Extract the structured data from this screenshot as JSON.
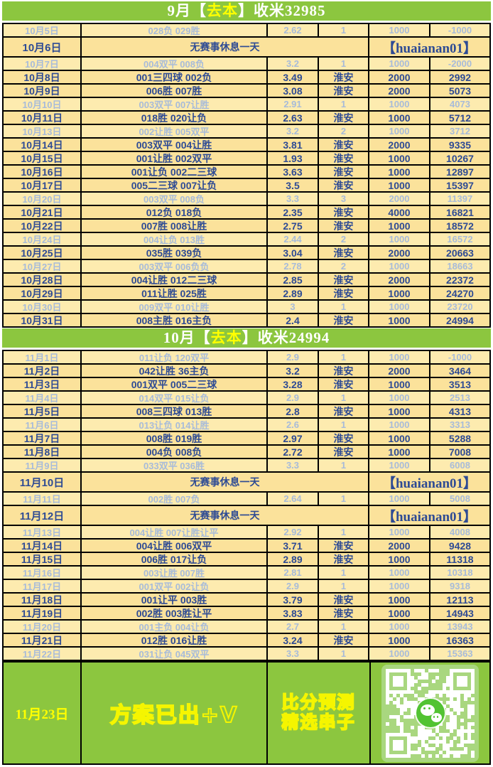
{
  "colors": {
    "header_green": "#8CC63F",
    "highlight_yellow": "#FFFF00",
    "win_text_navy": "#2E4B94",
    "loss_text_blue": "#A7BBD9",
    "win_row_bg": "#FBE29B",
    "loss_row_bg": "#FDEBAF",
    "footer_text_yellow": "#F5F500",
    "qr_bg_green": "#A9D77F",
    "wechat_green": "#52C332"
  },
  "headers": {
    "september": {
      "prefix": "9月【",
      "highlight": "去本",
      "suffix": "】收米32985"
    },
    "october": {
      "prefix": "10月【",
      "highlight": "去本",
      "suffix": "】收米24994"
    }
  },
  "october_rows": [
    {
      "type": "bet",
      "state": "loss",
      "date": "10月5日",
      "bets": "028负 029胜",
      "odds": "2.62",
      "venue": "1",
      "stake": "1000",
      "profit": "-1000"
    },
    {
      "type": "rest",
      "date": "10月6日",
      "note": "无赛事休息一天",
      "watermark": "【huaianan01】"
    },
    {
      "type": "bet",
      "state": "loss",
      "date": "10月7日",
      "bets": "004双平 008负",
      "odds": "3.2",
      "venue": "1",
      "stake": "1000",
      "profit": "-2000"
    },
    {
      "type": "bet",
      "state": "win",
      "date": "10月8日",
      "bets": "001三四球 002负",
      "odds": "3.49",
      "venue": "淮安",
      "stake": "2000",
      "profit": "2992"
    },
    {
      "type": "bet",
      "state": "win",
      "date": "10月9日",
      "bets": "006胜 007胜",
      "odds": "3.08",
      "venue": "淮安",
      "stake": "2000",
      "profit": "5073"
    },
    {
      "type": "bet",
      "state": "loss",
      "date": "10月10日",
      "bets": "003双平 007让胜",
      "odds": "2.91",
      "venue": "1",
      "stake": "1000",
      "profit": "4073"
    },
    {
      "type": "bet",
      "state": "win",
      "date": "10月11日",
      "bets": "018胜 020让负",
      "odds": "2.63",
      "venue": "淮安",
      "stake": "1000",
      "profit": "5712"
    },
    {
      "type": "bet",
      "state": "loss",
      "date": "10月13日",
      "bets": "002让胜 005双平",
      "odds": "3.2",
      "venue": "2",
      "stake": "1000",
      "profit": "3712"
    },
    {
      "type": "bet",
      "state": "win",
      "date": "10月14日",
      "bets": "003双平 004让胜",
      "odds": "3.81",
      "venue": "淮安",
      "stake": "2000",
      "profit": "9335"
    },
    {
      "type": "bet",
      "state": "win",
      "date": "10月15日",
      "bets": "001让胜 002双平",
      "odds": "1.93",
      "venue": "淮安",
      "stake": "1000",
      "profit": "10267"
    },
    {
      "type": "bet",
      "state": "win",
      "date": "10月16日",
      "bets": "001让负 002二三球",
      "odds": "3.63",
      "venue": "淮安",
      "stake": "1000",
      "profit": "12897"
    },
    {
      "type": "bet",
      "state": "win",
      "date": "10月17日",
      "bets": "005二三球 007让负",
      "odds": "3.5",
      "venue": "淮安",
      "stake": "1000",
      "profit": "15397"
    },
    {
      "type": "bet",
      "state": "loss",
      "date": "10月20日",
      "bets": "003双平 008负",
      "odds": "3.3",
      "venue": "3",
      "stake": "2000",
      "profit": "11397"
    },
    {
      "type": "bet",
      "state": "win",
      "date": "10月21日",
      "bets": "012负 018负",
      "odds": "2.35",
      "venue": "淮安",
      "stake": "4000",
      "profit": "16821"
    },
    {
      "type": "bet",
      "state": "win",
      "date": "10月22日",
      "bets": "007胜 008让胜",
      "odds": "2.75",
      "venue": "淮安",
      "stake": "1000",
      "profit": "18572"
    },
    {
      "type": "bet",
      "state": "loss",
      "date": "10月24日",
      "bets": "004让负 013胜",
      "odds": "2.44",
      "venue": "2",
      "stake": "1000",
      "profit": "16572"
    },
    {
      "type": "bet",
      "state": "win",
      "date": "10月25日",
      "bets": "035胜 039负",
      "odds": "3.04",
      "venue": "淮安",
      "stake": "2000",
      "profit": "20663"
    },
    {
      "type": "bet",
      "state": "loss",
      "date": "10月27日",
      "bets": "003双平 006负负",
      "odds": "2.78",
      "venue": "2",
      "stake": "1000",
      "profit": "18663"
    },
    {
      "type": "bet",
      "state": "win",
      "date": "10月28日",
      "bets": "004让胜 012二三球",
      "odds": "2.85",
      "venue": "淮安",
      "stake": "2000",
      "profit": "22372"
    },
    {
      "type": "bet",
      "state": "win",
      "date": "10月29日",
      "bets": "011让胜 025胜",
      "odds": "2.89",
      "venue": "淮安",
      "stake": "1000",
      "profit": "24270"
    },
    {
      "type": "bet",
      "state": "loss",
      "date": "10月30日",
      "bets": "009双平 010让胜",
      "odds": "3",
      "venue": "1",
      "stake": "1000",
      "profit": "23720"
    },
    {
      "type": "bet",
      "state": "win",
      "date": "10月31日",
      "bets": "008主胜 016主负",
      "odds": "2.4",
      "venue": "淮安",
      "stake": "1000",
      "profit": "24994"
    }
  ],
  "november_rows": [
    {
      "type": "bet",
      "state": "loss",
      "date": "11月1日",
      "bets": "011让负 120双平",
      "odds": "2.9",
      "venue": "1",
      "stake": "1000",
      "profit": "-1000"
    },
    {
      "type": "bet",
      "state": "win",
      "date": "11月2日",
      "bets": "042让胜 36主负",
      "odds": "3.2",
      "venue": "淮安",
      "stake": "2000",
      "profit": "3464"
    },
    {
      "type": "bet",
      "state": "win",
      "date": "11月3日",
      "bets": "001双平 005二三球",
      "odds": "3.28",
      "venue": "淮安",
      "stake": "1000",
      "profit": "3513"
    },
    {
      "type": "bet",
      "state": "loss",
      "date": "11月4日",
      "bets": "014双平 015让负",
      "odds": "2.9",
      "venue": "1",
      "stake": "1000",
      "profit": "2513"
    },
    {
      "type": "bet",
      "state": "win",
      "date": "11月5日",
      "bets": "008三四球 013胜",
      "odds": "2.8",
      "venue": "淮安",
      "stake": "1000",
      "profit": "4313"
    },
    {
      "type": "bet",
      "state": "loss",
      "date": "11月6日",
      "bets": "013让负 014让胜",
      "odds": "2.6",
      "venue": "1",
      "stake": "1000",
      "profit": "3313"
    },
    {
      "type": "bet",
      "state": "win",
      "date": "11月7日",
      "bets": "008胜 019胜",
      "odds": "2.97",
      "venue": "淮安",
      "stake": "1000",
      "profit": "5288"
    },
    {
      "type": "bet",
      "state": "win",
      "date": "11月8日",
      "bets": "004负 008负",
      "odds": "2.72",
      "venue": "淮安",
      "stake": "1000",
      "profit": "7008"
    },
    {
      "type": "bet",
      "state": "loss",
      "date": "11月9日",
      "bets": "033双平 036胜",
      "odds": "3.3",
      "venue": "1",
      "stake": "1000",
      "profit": "6008"
    },
    {
      "type": "rest",
      "date": "11月10日",
      "note": "无赛事休息一天",
      "watermark": "【huaianan01】"
    },
    {
      "type": "bet",
      "state": "loss",
      "date": "11月11日",
      "bets": "002胜 007负",
      "odds": "2.64",
      "venue": "1",
      "stake": "1000",
      "profit": "5008"
    },
    {
      "type": "rest",
      "date": "11月12日",
      "note": "无赛事休息一天",
      "watermark": "【huaianan01】"
    },
    {
      "type": "bet",
      "state": "loss",
      "date": "11月13日",
      "bets": "004让胜 007让胜让平",
      "odds": "2.92",
      "venue": "1",
      "stake": "1000",
      "profit": "4008"
    },
    {
      "type": "bet",
      "state": "win",
      "date": "11月14日",
      "bets": "004让胜 006双平",
      "odds": "3.71",
      "venue": "淮安",
      "stake": "2000",
      "profit": "9428"
    },
    {
      "type": "bet",
      "state": "win",
      "date": "11月15日",
      "bets": "006胜 017让负",
      "odds": "2.89",
      "venue": "淮安",
      "stake": "1000",
      "profit": "11318"
    },
    {
      "type": "bet",
      "state": "loss",
      "date": "11月16日",
      "bets": "003让胜 007胜",
      "odds": "2.81",
      "venue": "1",
      "stake": "1000",
      "profit": "10318"
    },
    {
      "type": "bet",
      "state": "loss",
      "date": "11月17日",
      "bets": "001双平 002让负",
      "odds": "2.9",
      "venue": "1",
      "stake": "1000",
      "profit": "9318"
    },
    {
      "type": "bet",
      "state": "win",
      "date": "11月18日",
      "bets": "001让平 003胜",
      "odds": "3.79",
      "venue": "淮安",
      "stake": "1000",
      "profit": "12113"
    },
    {
      "type": "bet",
      "state": "win",
      "date": "11月19日",
      "bets": "002胜 003胜让平",
      "odds": "3.83",
      "venue": "淮安",
      "stake": "1000",
      "profit": "14943"
    },
    {
      "type": "bet",
      "state": "loss",
      "date": "11月20日",
      "bets": "001主负 004让负",
      "odds": "2.7",
      "venue": "1",
      "stake": "1000",
      "profit": "13943"
    },
    {
      "type": "bet",
      "state": "win",
      "date": "11月21日",
      "bets": "012胜 016让胜",
      "odds": "3.24",
      "venue": "淮安",
      "stake": "1000",
      "profit": "16363"
    },
    {
      "type": "bet",
      "state": "loss",
      "date": "11月22日",
      "bets": "031让负 045双平",
      "odds": "3.3",
      "venue": "1",
      "stake": "1000",
      "profit": "15363"
    }
  ],
  "footer": {
    "date": "11月23日",
    "plan_text": "方案已出+V",
    "predict_line1": "比分预测",
    "predict_line2": "精选串子",
    "qr_label": "wechat-qr-code"
  }
}
